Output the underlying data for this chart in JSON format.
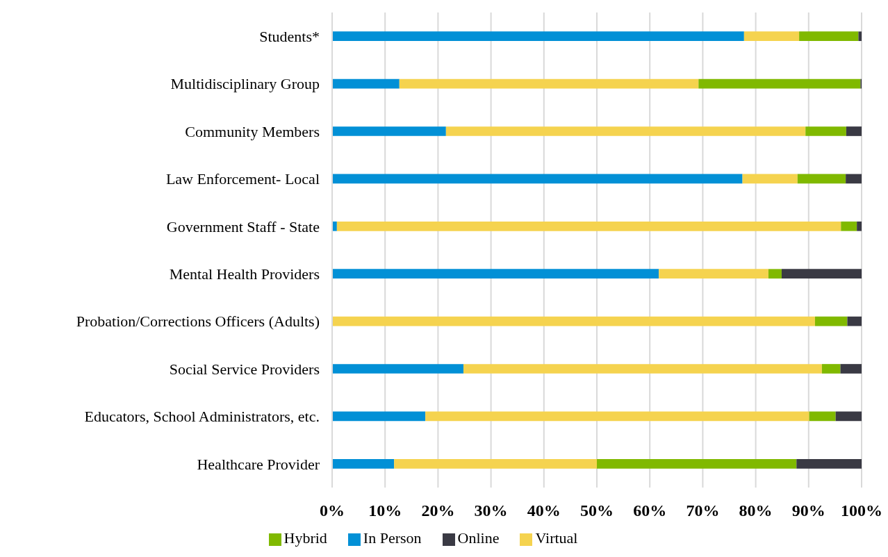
{
  "chart_data": {
    "type": "bar",
    "orientation": "horizontal",
    "stacked": true,
    "categories": [
      "Students*",
      "Multidisciplinary Group",
      "Community Members",
      "Law Enforcement- Local",
      "Government Staff - State",
      "Mental Health Providers",
      "Probation/Corrections Officers (Adults)",
      "Social Service Providers",
      "Educators, School Administrators, etc.",
      "Healthcare Provider"
    ],
    "series": [
      {
        "name": "In Person",
        "color": "#0290d6",
        "values": [
          77.8,
          12.7,
          21.5,
          77.5,
          0.9,
          61.7,
          0,
          24.8,
          17.6,
          11.7
        ]
      },
      {
        "name": "Virtual",
        "color": "#f5d34f",
        "values": [
          10.4,
          56.5,
          67.9,
          10.4,
          95.2,
          20.7,
          91.2,
          67.7,
          72.5,
          38.3
        ]
      },
      {
        "name": "Hybrid",
        "color": "#80b900",
        "values": [
          11.2,
          30.6,
          7.7,
          9.1,
          3.0,
          2.5,
          6.1,
          3.5,
          5.0,
          37.7
        ]
      },
      {
        "name": "Online",
        "color": "#3a3a44",
        "values": [
          0.6,
          0.2,
          2.9,
          3.0,
          0.9,
          15.1,
          2.7,
          4.0,
          4.9,
          12.3
        ]
      }
    ],
    "xlim": [
      0,
      100
    ],
    "xticks": [
      {
        "value": 0,
        "label": "0%"
      },
      {
        "value": 10,
        "label": "10%"
      },
      {
        "value": 20,
        "label": "20%"
      },
      {
        "value": 30,
        "label": "30%"
      },
      {
        "value": 40,
        "label": "40%"
      },
      {
        "value": 50,
        "label": "50%"
      },
      {
        "value": 60,
        "label": "60%"
      },
      {
        "value": 70,
        "label": "70%"
      },
      {
        "value": 80,
        "label": "80%"
      },
      {
        "value": 90,
        "label": "90%"
      },
      {
        "value": 100,
        "label": "100%"
      }
    ],
    "grid": "x",
    "legend": "bottom"
  }
}
